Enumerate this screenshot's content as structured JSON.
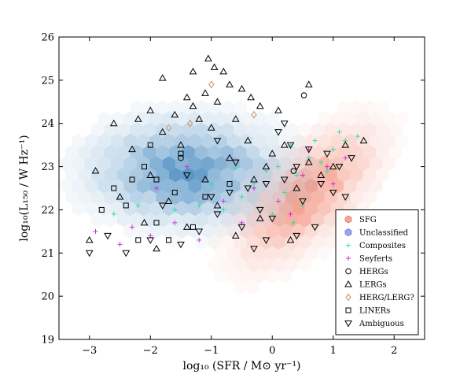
{
  "chart_data": {
    "type": "scatter",
    "xlabel": "log₁₀ (SFR / M⊙ yr⁻¹)",
    "ylabel": "log₁₀(L₁₅₀ / W Hz⁻¹)",
    "xlim": [
      -3.5,
      2.5
    ],
    "ylim": [
      19,
      26
    ],
    "x_ticks": [
      "−3",
      "−2",
      "−1",
      "0",
      "1",
      "2"
    ],
    "x_tick_values": [
      -3,
      -2,
      -1,
      0,
      1,
      2
    ],
    "y_ticks": [
      "19",
      "20",
      "21",
      "22",
      "23",
      "24",
      "25",
      "26"
    ],
    "y_tick_values": [
      19,
      20,
      21,
      22,
      23,
      24,
      25,
      26
    ],
    "grid": false,
    "legend_position": "lower-right",
    "density": [
      {
        "name": "SFG",
        "color": "#f07a62",
        "center": [
          0.55,
          22.5
        ],
        "spread": [
          0.55,
          0.55
        ],
        "peak": 0.75
      },
      {
        "name": "Unclassified",
        "color": "#2f7ab8",
        "center": [
          -1.4,
          22.9
        ],
        "spread": [
          0.9,
          0.7
        ],
        "peak": 0.8
      }
    ],
    "series": [
      {
        "name": "SFG",
        "marker": "hex",
        "color": "#f4a696",
        "edge": "#e07060"
      },
      {
        "name": "Unclassified",
        "marker": "hex",
        "color": "#9aa6e8",
        "edge": "#6a78d0"
      },
      {
        "name": "Composites",
        "marker": "plus",
        "color": "#30e0a0",
        "points": [
          [
            -0.1,
            22.9
          ],
          [
            0.2,
            22.4
          ],
          [
            0.4,
            22.8
          ],
          [
            0.6,
            23.2
          ],
          [
            0.8,
            23.1
          ],
          [
            1.0,
            23.4
          ],
          [
            1.2,
            23.6
          ],
          [
            -0.5,
            22.3
          ],
          [
            -0.8,
            22.0
          ],
          [
            -1.2,
            22.1
          ],
          [
            -1.6,
            22.0
          ],
          [
            -2.2,
            22.1
          ],
          [
            -2.6,
            21.9
          ],
          [
            0.3,
            23.5
          ],
          [
            0.7,
            23.6
          ],
          [
            1.4,
            23.7
          ],
          [
            0.0,
            21.9
          ],
          [
            -0.3,
            22.6
          ],
          [
            0.5,
            22.1
          ],
          [
            0.9,
            22.9
          ],
          [
            -1.0,
            22.6
          ],
          [
            0.1,
            23.0
          ],
          [
            1.1,
            23.8
          ],
          [
            -0.6,
            23.0
          ],
          [
            0.35,
            21.7
          ]
        ]
      },
      {
        "name": "Seyferts",
        "marker": "plus",
        "color": "#d030d0",
        "points": [
          [
            -2.9,
            21.5
          ],
          [
            -2.5,
            21.2
          ],
          [
            -2.0,
            21.4
          ],
          [
            -1.6,
            21.7
          ],
          [
            -1.2,
            21.3
          ],
          [
            -0.8,
            22.2
          ],
          [
            -0.3,
            22.5
          ],
          [
            0.1,
            22.2
          ],
          [
            0.5,
            22.8
          ],
          [
            0.9,
            23.0
          ],
          [
            1.2,
            23.2
          ],
          [
            -1.4,
            23.0
          ],
          [
            -2.3,
            21.6
          ],
          [
            -0.5,
            21.7
          ],
          [
            0.6,
            23.4
          ],
          [
            -1.9,
            22.5
          ],
          [
            0.3,
            21.9
          ],
          [
            1.0,
            22.6
          ]
        ]
      },
      {
        "name": "HERGs",
        "marker": "circle",
        "color": "#000000",
        "points": [
          [
            0.52,
            24.65
          ],
          [
            0.35,
            22.9
          ],
          [
            -1.5,
            23.2
          ]
        ]
      },
      {
        "name": "LERGs",
        "marker": "triangle-up",
        "color": "#000000",
        "points": [
          [
            -1.05,
            25.5
          ],
          [
            -0.95,
            25.3
          ],
          [
            -0.8,
            25.2
          ],
          [
            -1.3,
            25.2
          ],
          [
            -1.8,
            25.05
          ],
          [
            -0.7,
            24.9
          ],
          [
            -0.5,
            24.8
          ],
          [
            -1.1,
            24.7
          ],
          [
            -0.35,
            24.6
          ],
          [
            -0.9,
            24.5
          ],
          [
            -1.4,
            24.6
          ],
          [
            -0.2,
            24.4
          ],
          [
            -2.0,
            24.3
          ],
          [
            -1.6,
            24.2
          ],
          [
            -1.2,
            24.1
          ],
          [
            -0.6,
            24.1
          ],
          [
            0.1,
            24.3
          ],
          [
            0.6,
            24.9
          ],
          [
            -2.6,
            24.0
          ],
          [
            -1.8,
            23.8
          ],
          [
            -1.0,
            23.9
          ],
          [
            -0.4,
            23.6
          ],
          [
            0.2,
            23.5
          ],
          [
            -2.3,
            23.4
          ],
          [
            -1.5,
            23.5
          ],
          [
            -0.7,
            23.2
          ],
          [
            0.0,
            23.3
          ],
          [
            0.6,
            23.1
          ],
          [
            1.0,
            23.0
          ],
          [
            -2.9,
            22.9
          ],
          [
            -2.0,
            22.8
          ],
          [
            -1.1,
            22.7
          ],
          [
            -0.3,
            22.7
          ],
          [
            0.4,
            22.5
          ],
          [
            1.2,
            23.5
          ],
          [
            -2.5,
            22.3
          ],
          [
            -1.7,
            22.2
          ],
          [
            -0.9,
            22.1
          ],
          [
            -0.2,
            21.8
          ],
          [
            0.8,
            22.8
          ],
          [
            -2.1,
            21.7
          ],
          [
            -1.4,
            21.6
          ],
          [
            -0.6,
            21.4
          ],
          [
            -3.0,
            21.3
          ],
          [
            -1.9,
            21.1
          ],
          [
            1.5,
            23.6
          ],
          [
            -1.3,
            24.4
          ],
          [
            -2.2,
            24.1
          ],
          [
            -0.1,
            23.0
          ],
          [
            0.3,
            21.3
          ]
        ]
      },
      {
        "name": "HERG/LERG?",
        "marker": "diamond",
        "color": "#c8a080",
        "points": [
          [
            -1.0,
            24.9
          ],
          [
            -0.3,
            24.2
          ],
          [
            -1.7,
            23.9
          ],
          [
            -1.35,
            24.0
          ]
        ]
      },
      {
        "name": "LINERs",
        "marker": "square",
        "color": "#000000",
        "points": [
          [
            -2.1,
            23.0
          ],
          [
            -1.9,
            22.7
          ],
          [
            -1.6,
            22.4
          ],
          [
            -2.4,
            22.1
          ],
          [
            -2.8,
            22.0
          ],
          [
            -1.3,
            21.6
          ],
          [
            -2.2,
            21.3
          ],
          [
            -1.9,
            21.7
          ],
          [
            -1.5,
            23.3
          ],
          [
            -2.0,
            23.5
          ],
          [
            -1.1,
            22.3
          ],
          [
            -0.7,
            22.6
          ],
          [
            -2.6,
            22.5
          ],
          [
            -1.7,
            21.3
          ],
          [
            -2.3,
            22.7
          ]
        ]
      },
      {
        "name": "Ambiguous",
        "marker": "triangle-down",
        "color": "#000000",
        "points": [
          [
            0.1,
            23.8
          ],
          [
            0.3,
            23.5
          ],
          [
            0.6,
            23.4
          ],
          [
            0.9,
            23.3
          ],
          [
            1.1,
            23.0
          ],
          [
            1.3,
            23.2
          ],
          [
            0.4,
            23.0
          ],
          [
            0.2,
            22.7
          ],
          [
            -0.1,
            22.6
          ],
          [
            -0.4,
            22.5
          ],
          [
            -0.7,
            22.4
          ],
          [
            -1.0,
            22.3
          ],
          [
            -0.2,
            22.0
          ],
          [
            0.0,
            21.8
          ],
          [
            -0.5,
            21.6
          ],
          [
            -0.9,
            21.9
          ],
          [
            -1.2,
            21.5
          ],
          [
            0.5,
            22.2
          ],
          [
            0.8,
            22.6
          ],
          [
            1.0,
            22.4
          ],
          [
            0.7,
            21.6
          ],
          [
            -0.3,
            21.1
          ],
          [
            -1.5,
            21.2
          ],
          [
            -2.0,
            21.3
          ],
          [
            -2.4,
            21.0
          ],
          [
            -3.0,
            21.0
          ],
          [
            -2.7,
            21.4
          ],
          [
            -1.8,
            22.1
          ],
          [
            -1.4,
            22.8
          ],
          [
            -0.6,
            23.1
          ],
          [
            -0.9,
            23.6
          ],
          [
            0.2,
            24.0
          ],
          [
            1.2,
            22.3
          ],
          [
            0.4,
            21.4
          ],
          [
            -0.1,
            21.3
          ]
        ]
      }
    ]
  }
}
